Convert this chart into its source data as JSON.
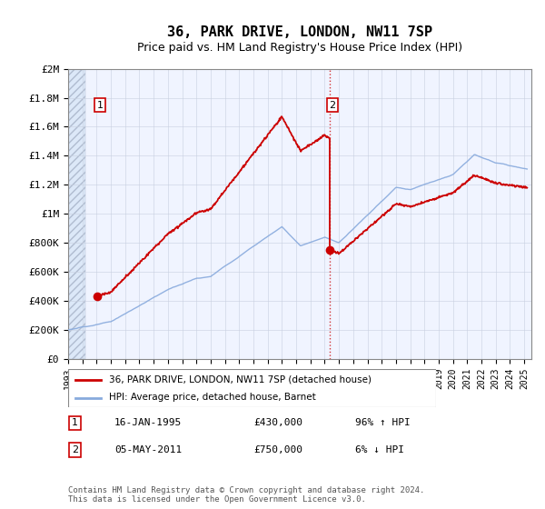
{
  "title": "36, PARK DRIVE, LONDON, NW11 7SP",
  "subtitle": "Price paid vs. HM Land Registry's House Price Index (HPI)",
  "ylabel_ticks": [
    "£0",
    "£200K",
    "£400K",
    "£600K",
    "£800K",
    "£1M",
    "£1.2M",
    "£1.4M",
    "£1.6M",
    "£1.8M",
    "£2M"
  ],
  "ytick_values": [
    0,
    200000,
    400000,
    600000,
    800000,
    1000000,
    1200000,
    1400000,
    1600000,
    1800000,
    2000000
  ],
  "ylim": [
    0,
    2000000
  ],
  "xlim_start": 1993.0,
  "xlim_end": 2025.5,
  "purchase1_date": 1995.04,
  "purchase1_price": 430000,
  "purchase2_date": 2011.34,
  "purchase2_price": 750000,
  "line_color_property": "#cc0000",
  "line_color_hpi": "#88aadd",
  "grid_color": "#c8d0e0",
  "background_plot": "#dce8f8",
  "background_white": "#f0f4ff",
  "hatch_bg": "#c8d0e0",
  "legend_label1": "36, PARK DRIVE, LONDON, NW11 7SP (detached house)",
  "legend_label2": "HPI: Average price, detached house, Barnet",
  "annot1_date": "16-JAN-1995",
  "annot1_price": "£430,000",
  "annot1_hpi": "96% ↑ HPI",
  "annot2_date": "05-MAY-2011",
  "annot2_price": "£750,000",
  "annot2_hpi": "6% ↓ HPI",
  "footer": "Contains HM Land Registry data © Crown copyright and database right 2024.\nThis data is licensed under the Open Government Licence v3.0.",
  "title_fontsize": 11,
  "subtitle_fontsize": 9,
  "tick_fontsize": 8,
  "xtick_years": [
    1993,
    1994,
    1995,
    1996,
    1997,
    1998,
    1999,
    2000,
    2001,
    2002,
    2003,
    2004,
    2005,
    2006,
    2007,
    2008,
    2009,
    2010,
    2011,
    2012,
    2013,
    2014,
    2015,
    2016,
    2017,
    2018,
    2019,
    2020,
    2021,
    2022,
    2023,
    2024,
    2025
  ]
}
